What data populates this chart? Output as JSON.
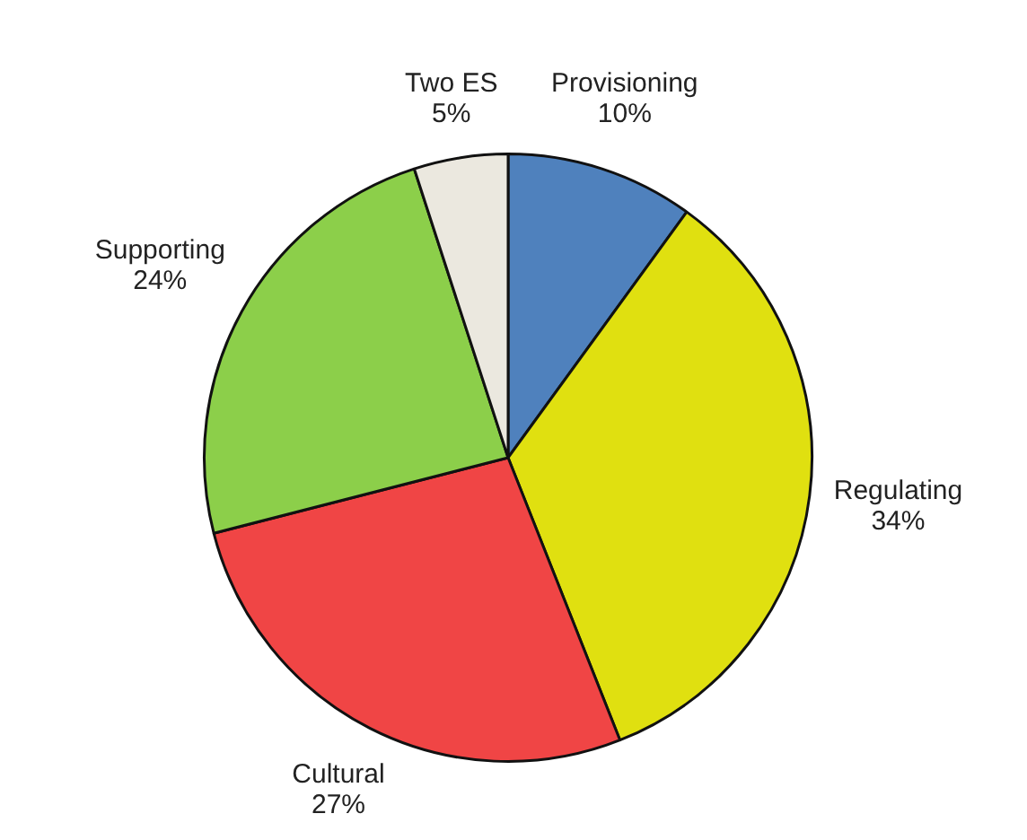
{
  "chart_data": {
    "type": "pie",
    "categories": [
      "Provisioning",
      "Regulating",
      "Cultural",
      "Supporting",
      "Two ES"
    ],
    "values": [
      10,
      34,
      27,
      24,
      5
    ],
    "colors": [
      "#4f81bd",
      "#e0e010",
      "#f04545",
      "#8ccf4a",
      "#ebe8df"
    ],
    "value_labels": [
      "10%",
      "34%",
      "27%",
      "24%",
      "5%"
    ],
    "legend": false
  }
}
